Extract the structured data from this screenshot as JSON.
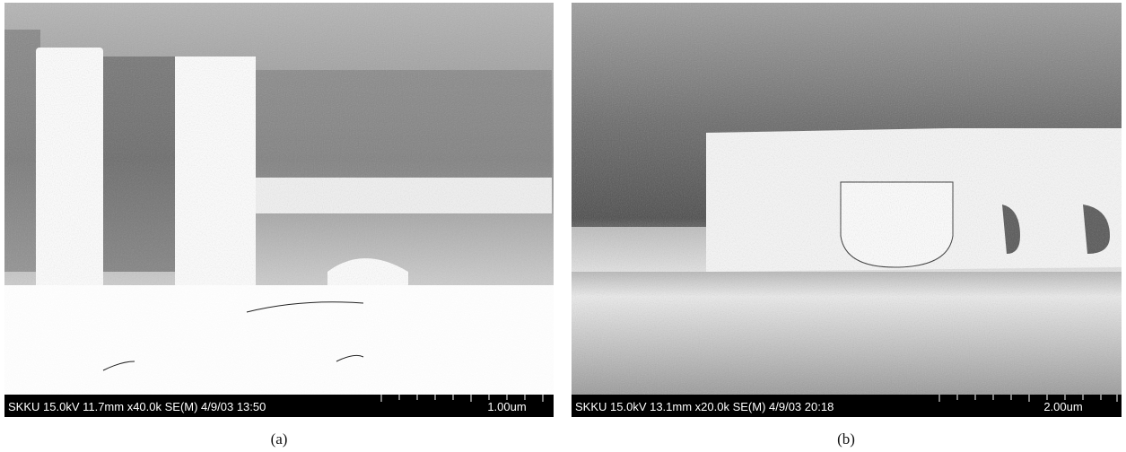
{
  "panels": [
    {
      "info": "SKKU 15.0kV 11.7mm x40.0k SE(M) 4/9/03 13:50",
      "scale": "1.00um",
      "caption": "(a)"
    },
    {
      "info": "SKKU 15.0kV 13.1mm x20.0k SE(M) 4/9/03 20:18",
      "scale": "2.00um",
      "caption": "(b)"
    }
  ]
}
